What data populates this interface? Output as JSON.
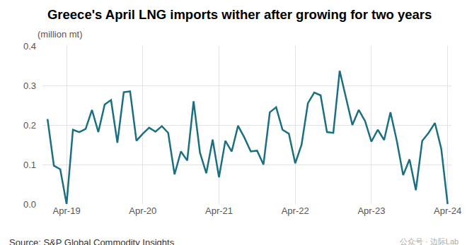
{
  "chart_data": {
    "type": "line",
    "title": "Greece's April LNG imports wither after growing for two years",
    "ylabel": "(million mt)",
    "source": "Source: S&P Global Commodity Insights",
    "watermark": "公众号 · 边际Lab",
    "color": "#1b6f82",
    "grid": true,
    "categories": [
      null,
      null,
      null,
      "Apr-19",
      null,
      null,
      null,
      null,
      null,
      null,
      null,
      null,
      null,
      null,
      null,
      "Apr-20",
      null,
      null,
      null,
      null,
      null,
      null,
      null,
      null,
      null,
      null,
      null,
      "Apr-21",
      null,
      null,
      null,
      null,
      null,
      null,
      null,
      null,
      null,
      null,
      null,
      "Apr-22",
      null,
      null,
      null,
      null,
      null,
      null,
      null,
      null,
      null,
      null,
      null,
      "Apr-23",
      null,
      null,
      null,
      null,
      null,
      null,
      null,
      null,
      null,
      null,
      null,
      "Apr-24"
    ],
    "values": [
      0.215,
      0.097,
      0.088,
      0.0,
      0.188,
      0.182,
      0.19,
      0.238,
      0.182,
      0.252,
      0.263,
      0.155,
      0.283,
      0.285,
      0.16,
      0.178,
      0.193,
      0.183,
      0.197,
      0.18,
      0.075,
      0.133,
      0.11,
      0.26,
      0.13,
      0.078,
      0.163,
      0.068,
      0.16,
      0.133,
      0.198,
      0.168,
      0.133,
      0.135,
      0.1,
      0.232,
      0.245,
      0.188,
      0.178,
      0.103,
      0.15,
      0.255,
      0.282,
      0.275,
      0.182,
      0.18,
      0.337,
      0.27,
      0.2,
      0.238,
      0.21,
      0.158,
      0.188,
      0.162,
      0.232,
      0.16,
      0.073,
      0.113,
      0.035,
      0.16,
      0.18,
      0.205,
      0.14,
      0.0
    ],
    "ylim": [
      0,
      0.4
    ],
    "yticks": [
      {
        "value": 0,
        "label": "0.0"
      },
      0.1,
      0.2,
      0.3,
      0.4
    ]
  }
}
